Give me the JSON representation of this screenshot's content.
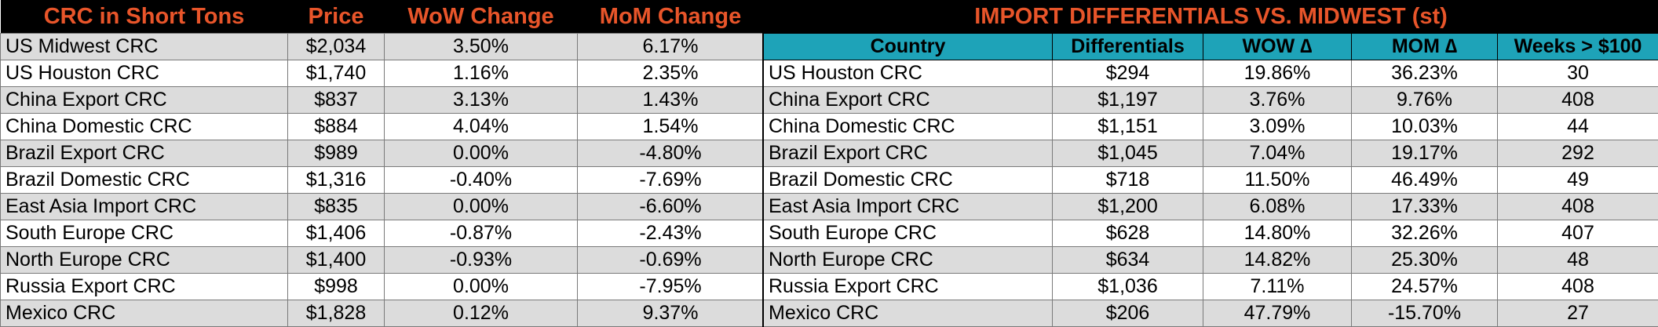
{
  "left": {
    "headers": [
      "CRC in Short Tons",
      "Price",
      "WoW Change",
      "MoM Change"
    ],
    "rows": [
      {
        "name": "US Midwest CRC",
        "price": "$2,034",
        "wow": "3.50%",
        "mom": "6.17%"
      },
      {
        "name": "US Houston CRC",
        "price": "$1,740",
        "wow": "1.16%",
        "mom": "2.35%"
      },
      {
        "name": "China Export CRC",
        "price": "$837",
        "wow": "3.13%",
        "mom": "1.43%"
      },
      {
        "name": "China Domestic CRC",
        "price": "$884",
        "wow": "4.04%",
        "mom": "1.54%"
      },
      {
        "name": "Brazil Export CRC",
        "price": "$989",
        "wow": "0.00%",
        "mom": "-4.80%"
      },
      {
        "name": "Brazil Domestic CRC",
        "price": "$1,316",
        "wow": "-0.40%",
        "mom": "-7.69%"
      },
      {
        "name": "East Asia Import CRC",
        "price": "$835",
        "wow": "0.00%",
        "mom": "-6.60%"
      },
      {
        "name": "South Europe CRC",
        "price": "$1,406",
        "wow": "-0.87%",
        "mom": "-2.43%"
      },
      {
        "name": "North Europe CRC",
        "price": "$1,400",
        "wow": "-0.93%",
        "mom": "-0.69%"
      },
      {
        "name": "Russia Export CRC",
        "price": "$998",
        "wow": "0.00%",
        "mom": "-7.95%"
      },
      {
        "name": "Mexico CRC",
        "price": "$1,828",
        "wow": "0.12%",
        "mom": "9.37%"
      }
    ]
  },
  "right": {
    "title": "IMPORT DIFFERENTIALS VS. MIDWEST (st)",
    "headers": [
      "Country",
      "Differentials",
      "WOW ∆",
      "MOM ∆",
      "Weeks > $100"
    ],
    "rows": [
      {
        "name": "US Houston CRC",
        "diff": "$294",
        "wow": "19.86%",
        "mom": "36.23%",
        "weeks": "30"
      },
      {
        "name": "China Export CRC",
        "diff": "$1,197",
        "wow": "3.76%",
        "mom": "9.76%",
        "weeks": "408"
      },
      {
        "name": "China Domestic CRC",
        "diff": "$1,151",
        "wow": "3.09%",
        "mom": "10.03%",
        "weeks": "44"
      },
      {
        "name": "Brazil Export CRC",
        "diff": "$1,045",
        "wow": "7.04%",
        "mom": "19.17%",
        "weeks": "292"
      },
      {
        "name": "Brazil Domestic CRC",
        "diff": "$718",
        "wow": "11.50%",
        "mom": "46.49%",
        "weeks": "49"
      },
      {
        "name": "East Asia Import CRC",
        "diff": "$1,200",
        "wow": "6.08%",
        "mom": "17.33%",
        "weeks": "408"
      },
      {
        "name": "South Europe CRC",
        "diff": "$628",
        "wow": "14.80%",
        "mom": "32.26%",
        "weeks": "407"
      },
      {
        "name": "North Europe CRC",
        "diff": "$634",
        "wow": "14.82%",
        "mom": "25.30%",
        "weeks": "48"
      },
      {
        "name": "Russia Export CRC",
        "diff": "$1,036",
        "wow": "7.11%",
        "mom": "24.57%",
        "weeks": "408"
      },
      {
        "name": "Mexico CRC",
        "diff": "$206",
        "wow": "47.79%",
        "mom": "-15.70%",
        "weeks": "27"
      }
    ]
  },
  "colors": {
    "header_bg": "#000000",
    "header_text": "#e8552a",
    "subheader_bg": "#1ea3b8",
    "shade_row": "#dcdcdc"
  }
}
